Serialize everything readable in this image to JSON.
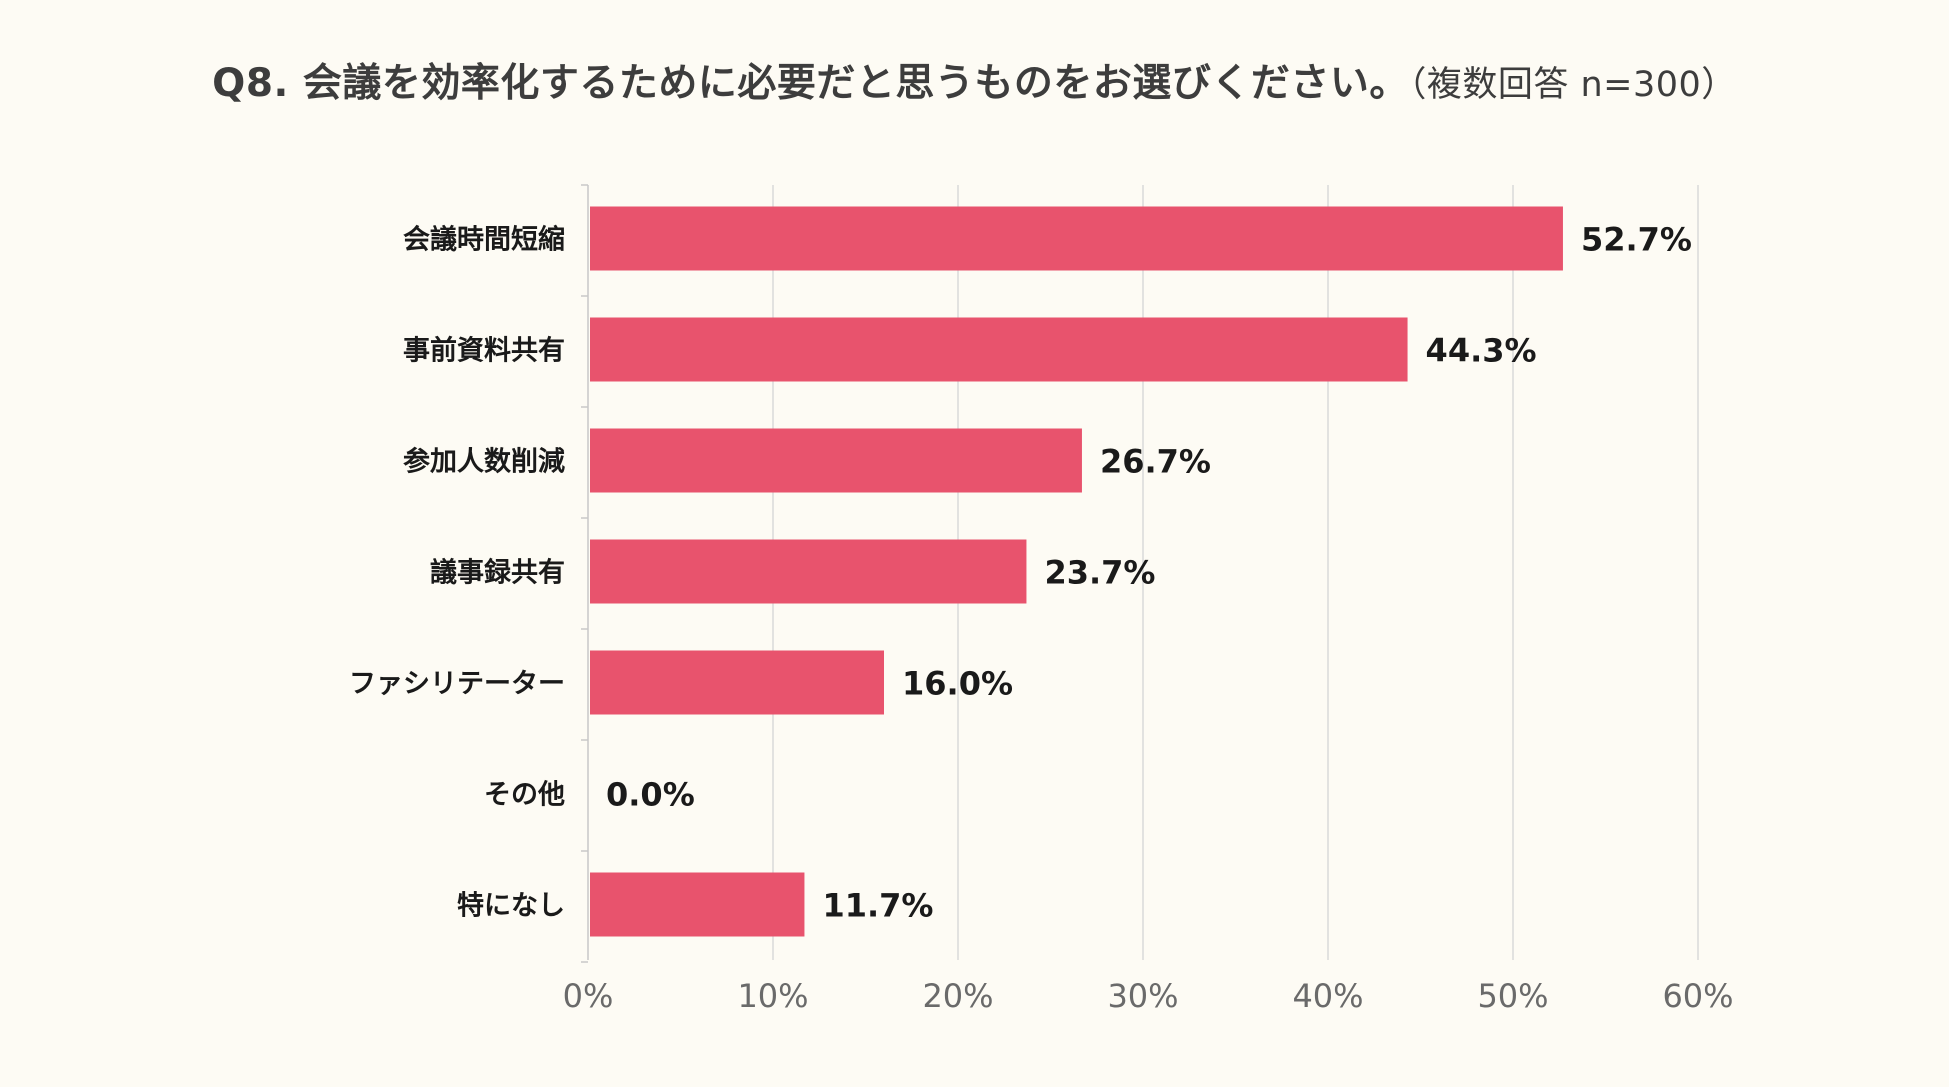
{
  "header": {
    "title": "Q8. 会議を効率化するために必要だと思うものをお選びください。",
    "subtitle": "（複数回答 n=300）"
  },
  "chart_data": {
    "type": "bar",
    "orientation": "horizontal",
    "categories": [
      "会議時間短縮",
      "事前資料共有",
      "参加人数削減",
      "議事録共有",
      "ファシリテーター",
      "その他",
      "特になし"
    ],
    "values": [
      52.7,
      44.3,
      26.7,
      23.7,
      16.0,
      0.0,
      11.7
    ],
    "value_labels": [
      "52.7%",
      "44.3%",
      "26.7%",
      "23.7%",
      "16.0%",
      "0.0%",
      "11.7%"
    ],
    "xlim": [
      0,
      60
    ],
    "xticks": [
      0,
      10,
      20,
      30,
      40,
      50,
      60
    ],
    "xtick_labels": [
      "0%",
      "10%",
      "20%",
      "30%",
      "40%",
      "50%",
      "60%"
    ],
    "grid": true,
    "legend": "none",
    "colors": {
      "bar": "#e8536d",
      "grid": "#d9d9d9",
      "axis": "#c8c8c8"
    }
  }
}
